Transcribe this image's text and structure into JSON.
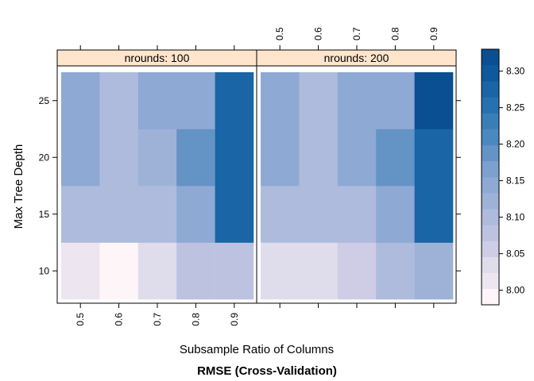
{
  "chart_data": {
    "type": "heatmap",
    "title": "RMSE (Cross-Validation)",
    "xlabel": "Subsample Ratio of Columns",
    "ylabel": "Max Tree Depth",
    "x": [
      "0.5",
      "0.6",
      "0.7",
      "0.8",
      "0.9"
    ],
    "y": [
      10,
      15,
      20,
      25
    ],
    "y_ticks": [
      "10",
      "15",
      "20",
      "25"
    ],
    "colorbar": {
      "min": 7.98,
      "max": 8.33,
      "ticks": [
        "8.00",
        "8.05",
        "8.10",
        "8.15",
        "8.20",
        "8.25",
        "8.30"
      ],
      "tick_values": [
        8.0,
        8.05,
        8.1,
        8.15,
        8.2,
        8.25,
        8.3
      ],
      "colors": [
        "#FEF5F8",
        "#EDE6F1",
        "#DFDCEC",
        "#CECDE5",
        "#BEC2E1",
        "#AEBBDC",
        "#9EB2D8",
        "#8EA9D4",
        "#7EA0CF",
        "#6493C6",
        "#4A89C0",
        "#3A7EB8",
        "#2672B0",
        "#1965A6",
        "#0E599D",
        "#0A4F91"
      ]
    },
    "panels": [
      {
        "strip": "nrounds: 100",
        "values": [
          [
            8.01,
            8.0,
            8.03,
            8.085,
            8.085
          ],
          [
            8.1,
            8.09,
            8.1,
            8.14,
            8.28
          ],
          [
            8.14,
            8.11,
            8.125,
            8.19,
            8.28
          ],
          [
            8.14,
            8.11,
            8.14,
            8.14,
            8.28
          ]
        ]
      },
      {
        "strip": "nrounds: 200",
        "values": [
          [
            8.03,
            8.03,
            8.06,
            8.1,
            8.13
          ],
          [
            8.1,
            8.1,
            8.1,
            8.14,
            8.28
          ],
          [
            8.14,
            8.11,
            8.14,
            8.19,
            8.28
          ],
          [
            8.14,
            8.11,
            8.14,
            8.14,
            8.32
          ]
        ]
      }
    ]
  }
}
